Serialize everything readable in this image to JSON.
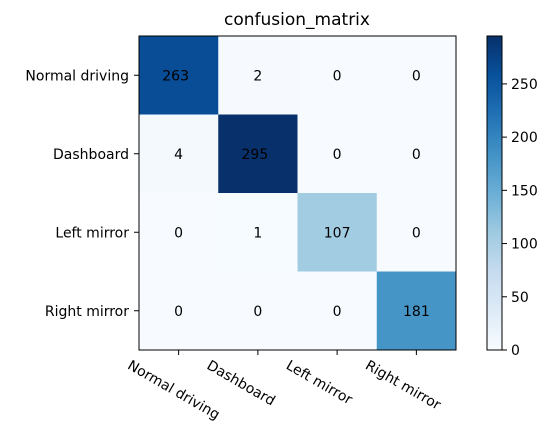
{
  "chart_data": {
    "type": "heatmap",
    "title": "confusion_matrix",
    "row_labels": [
      "Normal driving",
      "Dashboard",
      "Left mirror",
      "Right mirror"
    ],
    "col_labels": [
      "Normal driving",
      "Dashboard",
      "Left mirror",
      "Right mirror"
    ],
    "values": [
      [
        263,
        2,
        0,
        0
      ],
      [
        4,
        295,
        0,
        0
      ],
      [
        0,
        1,
        107,
        0
      ],
      [
        0,
        0,
        0,
        181
      ]
    ],
    "colormap": "Blues",
    "colorbar": {
      "min": 0,
      "max": 295,
      "ticks": [
        0,
        50,
        100,
        150,
        200,
        250
      ],
      "tick_labels": [
        "0",
        "50",
        "100",
        "150",
        "200",
        "250"
      ]
    }
  }
}
